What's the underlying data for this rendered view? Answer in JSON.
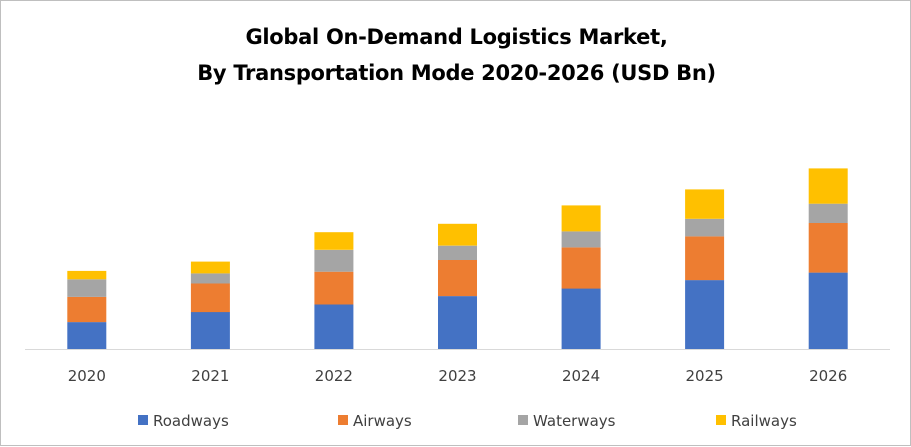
{
  "chart_data": {
    "type": "bar",
    "stacked": true,
    "title_lines": [
      "Global On-Demand Logistics Market,",
      "By Transportation Mode 2020-2026 (USD Bn)"
    ],
    "categories": [
      "2020",
      "2021",
      "2022",
      "2023",
      "2024",
      "2025",
      "2026"
    ],
    "series": [
      {
        "name": "Roadways",
        "color": "#4472C4",
        "values": [
          32,
          44,
          53,
          63,
          72,
          82,
          91
        ]
      },
      {
        "name": "Airways",
        "color": "#ED7D31",
        "values": [
          30,
          34,
          39,
          43,
          49,
          52,
          59
        ]
      },
      {
        "name": "Waterways",
        "color": "#A5A5A5",
        "values": [
          21,
          12,
          26,
          17,
          19,
          21,
          23
        ]
      },
      {
        "name": "Railways",
        "color": "#FFC000",
        "values": [
          10,
          14,
          21,
          26,
          31,
          35,
          42
        ]
      }
    ],
    "ylim": [
      0,
      250
    ],
    "grid": false,
    "yaxis_visible": false,
    "legend_position": "bottom"
  }
}
